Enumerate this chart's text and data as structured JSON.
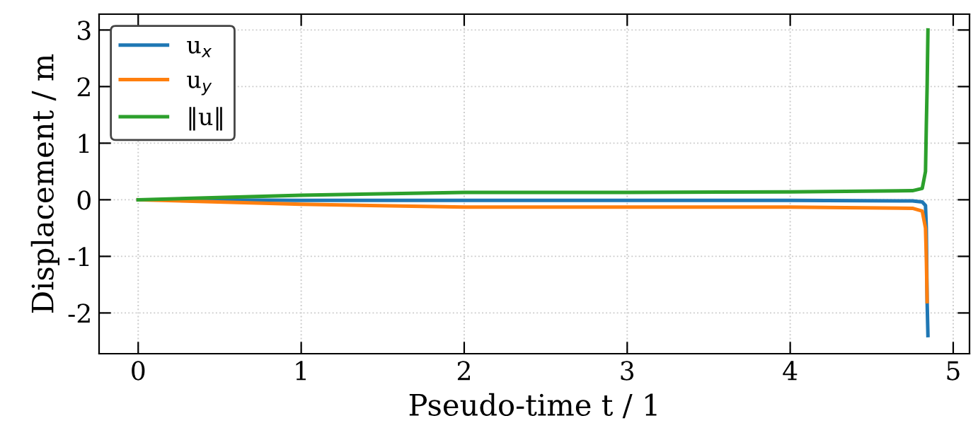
{
  "chart_data": {
    "type": "line",
    "xlabel": "Pseudo-time t / 1",
    "ylabel": "Displacement / m",
    "series": [
      {
        "name": "u$_{x}$",
        "color": "#1f77b4",
        "x": [
          0,
          1,
          2,
          3,
          4,
          4.75,
          4.81,
          4.83,
          4.835,
          4.84,
          4.845
        ],
        "values": [
          0,
          -0.01,
          -0.01,
          -0.01,
          -0.01,
          -0.02,
          -0.04,
          -0.1,
          -0.5,
          -1.8,
          -2.4
        ]
      },
      {
        "name": "u$_{y}$",
        "color": "#ff7f0e",
        "x": [
          0,
          1,
          2,
          3,
          4,
          4.75,
          4.81,
          4.83,
          4.835,
          4.84
        ],
        "values": [
          0,
          -0.08,
          -0.13,
          -0.13,
          -0.13,
          -0.15,
          -0.2,
          -0.5,
          -1.0,
          -1.8
        ]
      },
      {
        "name": "‖u‖",
        "color": "#2ca02c",
        "x": [
          0,
          1,
          2,
          3,
          4,
          4.75,
          4.81,
          4.83,
          4.835,
          4.84,
          4.845
        ],
        "values": [
          0,
          0.08,
          0.13,
          0.13,
          0.14,
          0.16,
          0.2,
          0.5,
          1.3,
          2.0,
          3.0
        ]
      }
    ],
    "xlim": [
      -0.24,
      5.1
    ],
    "ylim": [
      -2.72,
      3.28
    ],
    "xticks": [
      0,
      1,
      2,
      3,
      4,
      5
    ],
    "yticks": [
      -2,
      -1,
      0,
      1,
      2,
      3
    ],
    "grid": true,
    "legend": "top left",
    "marker": "none",
    "line_style": "solid"
  }
}
